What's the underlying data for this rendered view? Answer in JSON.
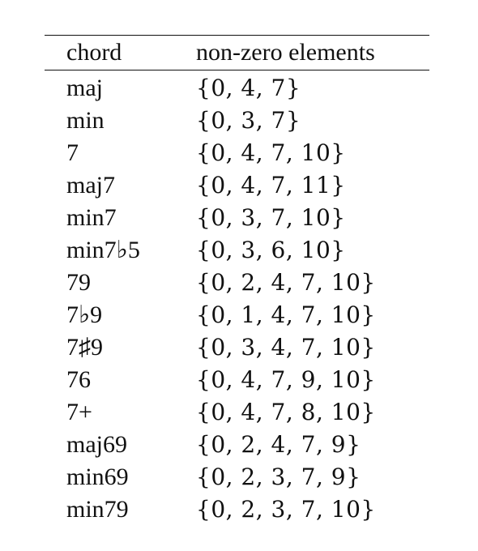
{
  "table": {
    "headers": {
      "chord": "chord",
      "elements": "non-zero elements"
    },
    "rows": [
      {
        "chord": "maj",
        "elements": "{0, 4, 7}"
      },
      {
        "chord": "min",
        "elements": "{0, 3, 7}"
      },
      {
        "chord": "7",
        "elements": "{0, 4, 7, 10}"
      },
      {
        "chord": "maj7",
        "elements": "{0, 4, 7, 11}"
      },
      {
        "chord": "min7",
        "elements": "{0, 3, 7, 10}"
      },
      {
        "chord": "min7♭5",
        "elements": "{0, 3, 6, 10}"
      },
      {
        "chord": "79",
        "elements": "{0, 2, 4, 7, 10}"
      },
      {
        "chord": "7♭9",
        "elements": "{0, 1, 4, 7, 10}"
      },
      {
        "chord": "7♯9",
        "elements": "{0, 3, 4, 7, 10}"
      },
      {
        "chord": "76",
        "elements": "{0, 4, 7, 9, 10}"
      },
      {
        "chord": "7+",
        "elements": "{0, 4, 7, 8, 10}"
      },
      {
        "chord": "maj69",
        "elements": "{0, 2, 4, 7, 9}"
      },
      {
        "chord": "min69",
        "elements": "{0, 2, 3, 7, 9}"
      },
      {
        "chord": "min79",
        "elements": "{0, 2, 3, 7, 10}"
      }
    ]
  }
}
